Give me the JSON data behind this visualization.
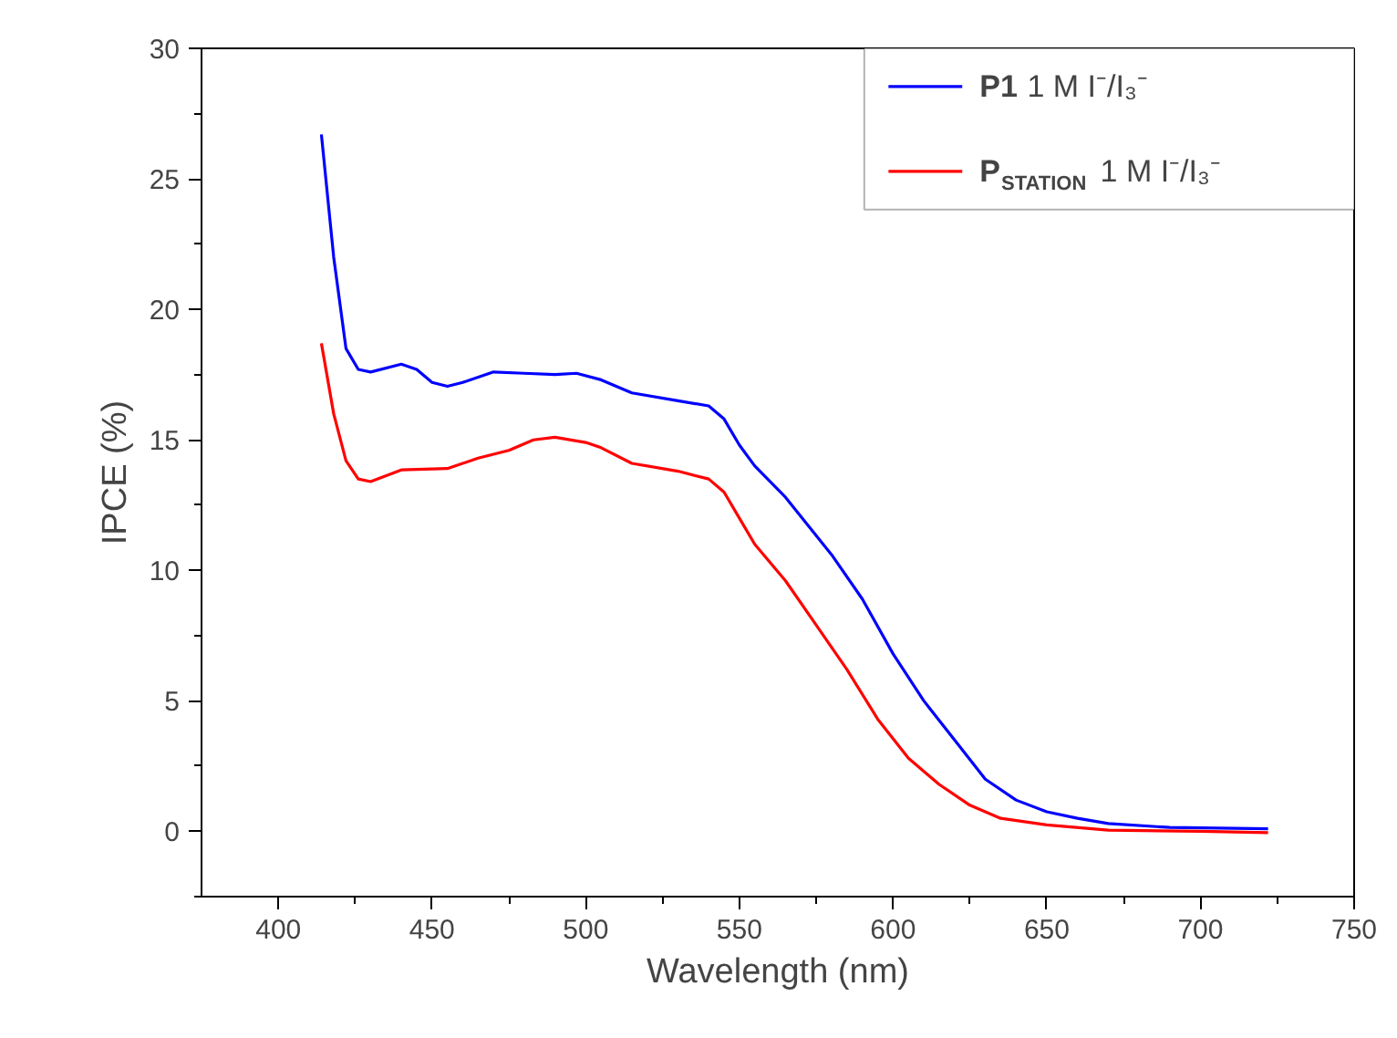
{
  "chart_data": {
    "type": "line",
    "xlabel": "Wavelength (nm)",
    "ylabel": "IPCE (%)",
    "xlim": [
      375,
      750
    ],
    "ylim": [
      -2.5,
      30
    ],
    "xticks": [
      400,
      450,
      500,
      550,
      600,
      650,
      700,
      750,
      {
        "value": 425,
        "label": null
      },
      {
        "value": 475,
        "label": null
      },
      {
        "value": 525,
        "label": null
      },
      {
        "value": 575,
        "label": null
      },
      {
        "value": 625,
        "label": null
      },
      {
        "value": 675,
        "label": null
      },
      {
        "value": 725,
        "label": null
      }
    ],
    "yticks": [
      0,
      5,
      10,
      15,
      20,
      25,
      30,
      {
        "value": -2.5,
        "label": null
      },
      {
        "value": 2.5,
        "label": null
      },
      {
        "value": 7.5,
        "label": null
      },
      {
        "value": 12.5,
        "label": null
      },
      {
        "value": 17.5,
        "label": null
      },
      {
        "value": 22.5,
        "label": null
      },
      {
        "value": 27.5,
        "label": null
      }
    ],
    "grid": false,
    "legend": "top right",
    "line_style": "solid",
    "marker": "none",
    "series": [
      {
        "name": "P1 1 M I⁻/I₃⁻",
        "color": "#0000ff",
        "x": [
          414,
          418,
          422,
          426,
          430,
          440,
          445,
          450,
          455,
          460,
          470,
          480,
          490,
          497,
          505,
          515,
          530,
          540,
          545,
          550,
          555,
          565,
          580,
          590,
          600,
          610,
          620,
          630,
          640,
          650,
          660,
          670,
          690,
          722
        ],
        "values": [
          26.7,
          22,
          18.5,
          17.7,
          17.6,
          17.9,
          17.7,
          17.2,
          17.05,
          17.2,
          17.6,
          17.55,
          17.5,
          17.55,
          17.3,
          16.8,
          16.5,
          16.3,
          15.8,
          14.8,
          14.0,
          12.8,
          10.6,
          8.9,
          6.8,
          5.0,
          3.5,
          2.0,
          1.2,
          0.75,
          0.5,
          0.3,
          0.15,
          0.1
        ]
      },
      {
        "name": "P$_{STATION}$ 1 M I⁻/I₃⁻",
        "color": "#ff0000",
        "x": [
          414,
          418,
          422,
          426,
          430,
          440,
          455,
          465,
          475,
          483,
          490,
          500,
          505,
          515,
          530,
          540,
          545,
          550,
          555,
          565,
          575,
          585,
          595,
          605,
          615,
          625,
          635,
          650,
          670,
          700,
          722
        ],
        "values": [
          18.7,
          16,
          14.2,
          13.5,
          13.4,
          13.85,
          13.9,
          14.3,
          14.6,
          15.0,
          15.1,
          14.9,
          14.7,
          14.1,
          13.8,
          13.5,
          13.0,
          12.0,
          11.0,
          9.6,
          7.9,
          6.2,
          4.3,
          2.8,
          1.8,
          1.0,
          0.5,
          0.25,
          0.05,
          0.0,
          -0.05
        ]
      }
    ]
  }
}
